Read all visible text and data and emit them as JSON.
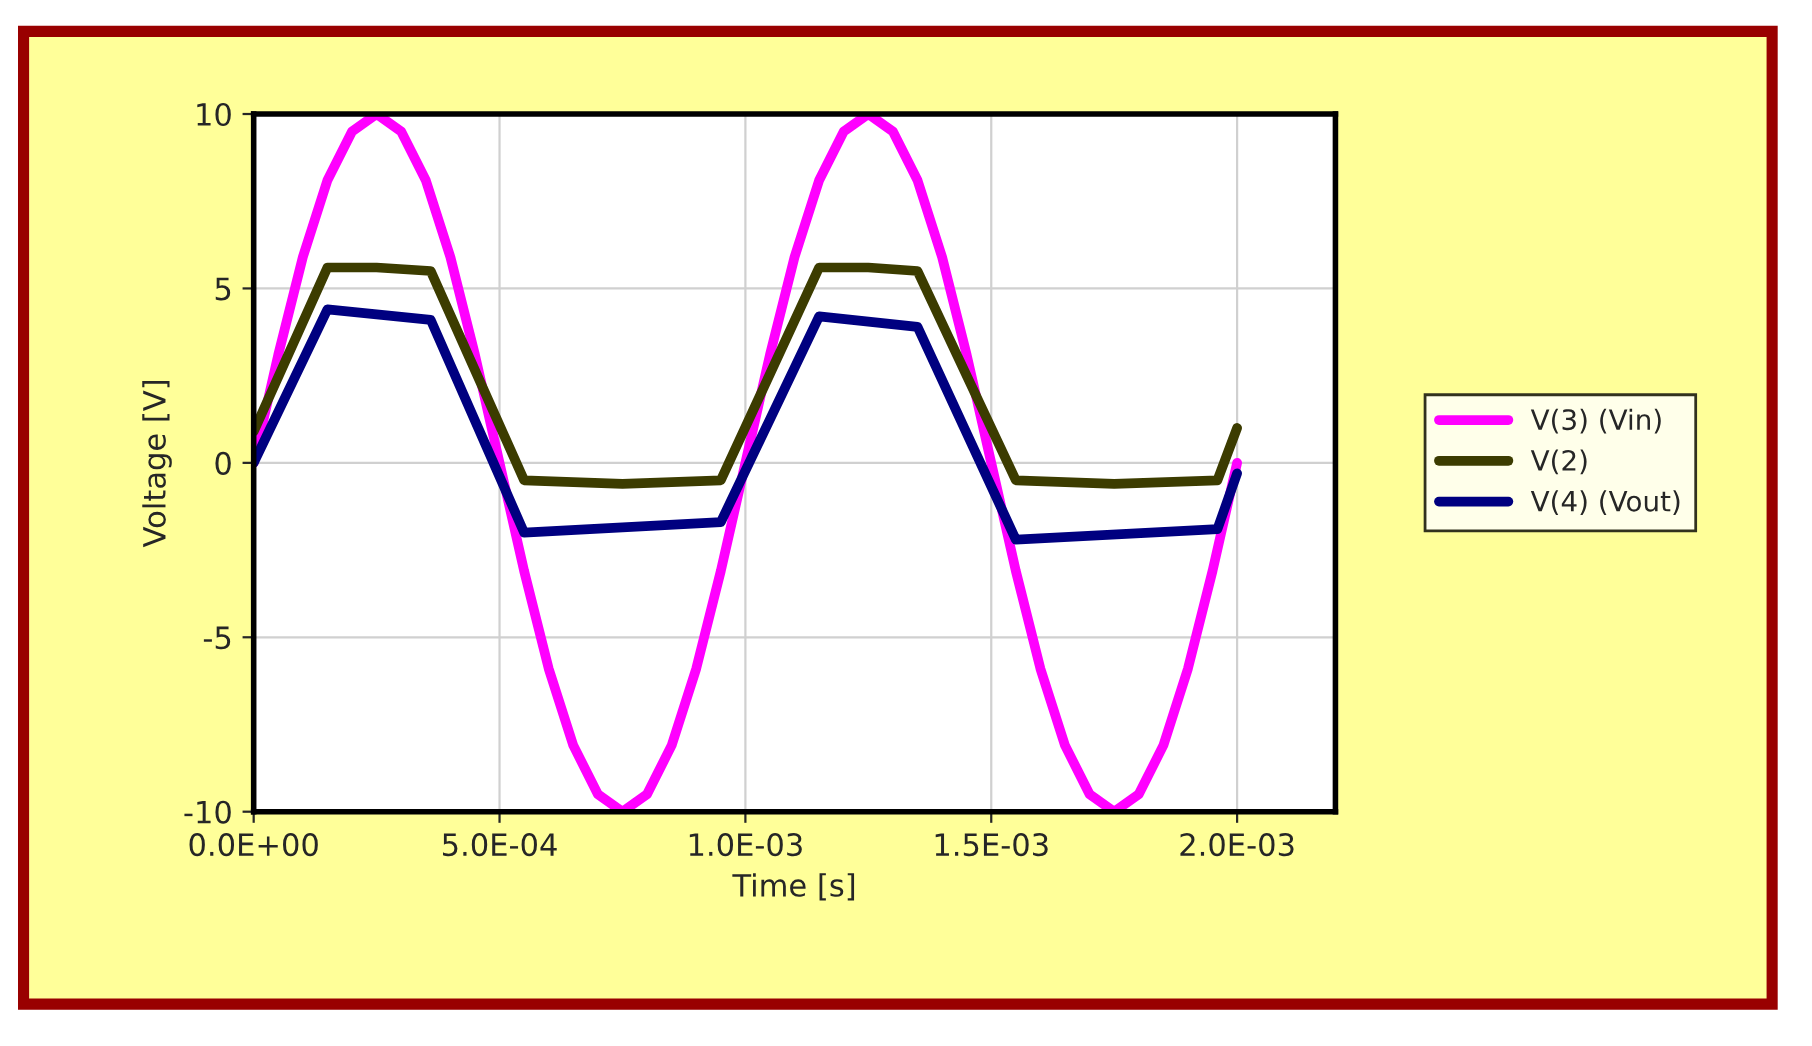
{
  "chart_data": {
    "type": "line",
    "xlabel": "Time [s]",
    "ylabel": "Voltage [V]",
    "xlim": [
      0,
      0.0022
    ],
    "ylim": [
      -10,
      10
    ],
    "xticks": [
      {
        "value": 0,
        "label": "0.0E+00"
      },
      {
        "value": 0.0005,
        "label": "5.0E-04"
      },
      {
        "value": 0.001,
        "label": "1.0E-03"
      },
      {
        "value": 0.0015,
        "label": "1.5E-03"
      },
      {
        "value": 0.002,
        "label": "2.0E-03"
      }
    ],
    "yticks": [
      -10,
      -5,
      0,
      5,
      10
    ],
    "grid": true,
    "legend": "right",
    "line_style": "solid",
    "marker": "none",
    "series": [
      {
        "name": "V(3) (Vin)",
        "color": "#ff00ff",
        "x": [
          0,
          5e-05,
          0.0001,
          0.00015,
          0.0002,
          0.00025,
          0.0003,
          0.00035,
          0.0004,
          0.00045,
          0.0005,
          0.00055,
          0.0006,
          0.00065,
          0.0007,
          0.00075,
          0.0008,
          0.00085,
          0.0009,
          0.00095,
          0.001,
          0.00105,
          0.0011,
          0.00115,
          0.0012,
          0.00125,
          0.0013,
          0.00135,
          0.0014,
          0.00145,
          0.0015,
          0.00155,
          0.0016,
          0.00165,
          0.0017,
          0.00175,
          0.0018,
          0.00185,
          0.0019,
          0.00195,
          0.002
        ],
        "values": [
          0,
          3.1,
          5.9,
          8.1,
          9.5,
          10,
          9.5,
          8.1,
          5.9,
          3.1,
          0,
          -3.1,
          -5.9,
          -8.1,
          -9.5,
          -10,
          -9.5,
          -8.1,
          -5.9,
          -3.1,
          0,
          3.1,
          5.9,
          8.1,
          9.5,
          10,
          9.5,
          8.1,
          5.9,
          3.1,
          0,
          -3.1,
          -5.9,
          -8.1,
          -9.5,
          -10,
          -9.5,
          -8.1,
          -5.9,
          -3.1,
          0
        ]
      },
      {
        "name": "V(2)",
        "color": "#3c3c00",
        "x": [
          0,
          0.00015,
          0.00025,
          0.00036,
          0.00055,
          0.00075,
          0.00095,
          0.00115,
          0.00125,
          0.00135,
          0.00155,
          0.00175,
          0.00196,
          0.002
        ],
        "values": [
          0.9,
          5.6,
          5.6,
          5.5,
          -0.5,
          -0.6,
          -0.5,
          5.6,
          5.6,
          5.5,
          -0.5,
          -0.6,
          -0.5,
          1.0
        ]
      },
      {
        "name": "V(4) (Vout)",
        "color": "#000080",
        "x": [
          0,
          0.00015,
          0.00036,
          0.00055,
          0.00095,
          0.00115,
          0.00135,
          0.00155,
          0.00196,
          0.002
        ],
        "values": [
          0,
          4.4,
          4.1,
          -2.0,
          -1.7,
          4.2,
          3.9,
          -2.2,
          -1.9,
          -0.3
        ]
      }
    ]
  }
}
